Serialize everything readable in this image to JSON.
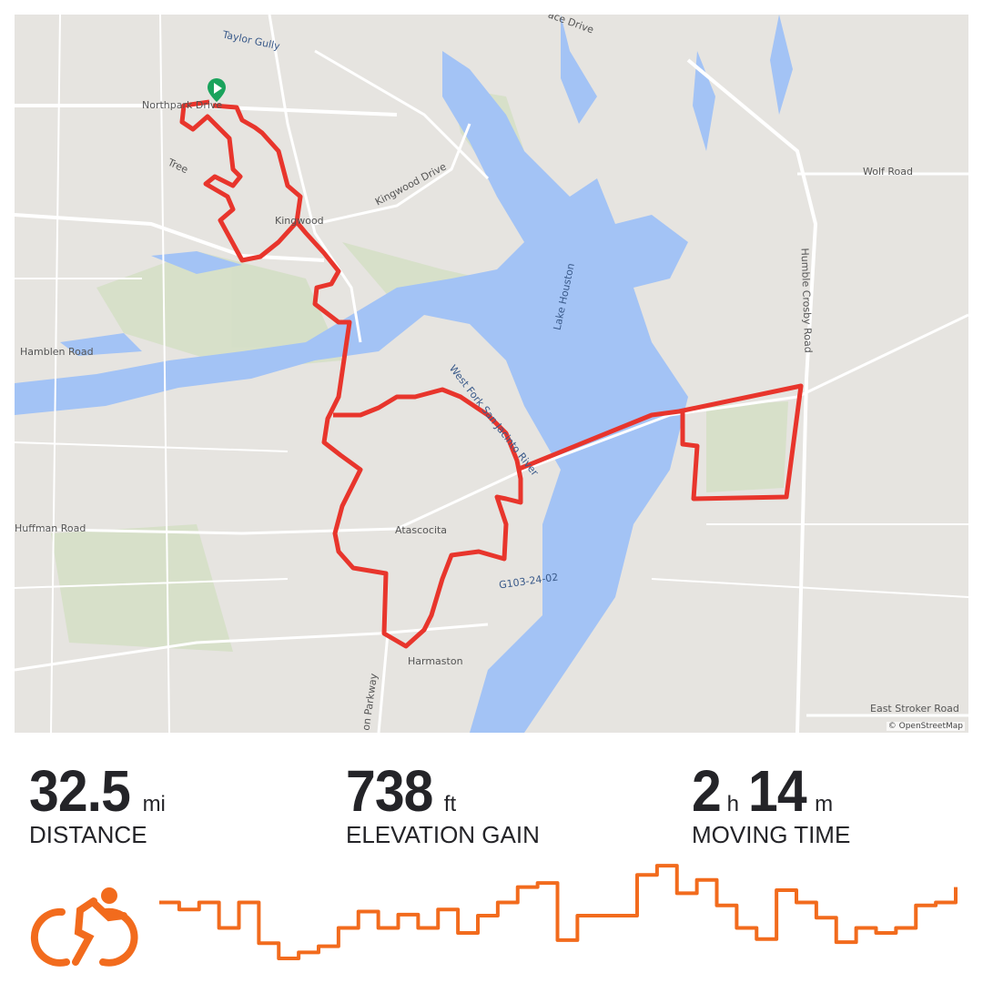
{
  "map": {
    "labels": {
      "taylor_gully": "Taylor Gully",
      "northpark": "Northpark Drive",
      "tree": "Tree",
      "kingwood": "Kingwood",
      "kingwood_drive": "Kingwood Drive",
      "hamblen": "Hamblen Road",
      "west_fork": "West Fork San Jacinto River",
      "lake_houston": "Lake Houston",
      "humble_crosby": "Humble Crosby Road",
      "wolf_road": "Wolf Road",
      "huffman": "Huffman Road",
      "atascocita": "Atascocita",
      "g103": "G103-24-02",
      "harmaston": "Harmaston",
      "parkway": "on Parkway",
      "east_stroker": "East Stroker Road",
      "place_drive": "ace Drive"
    },
    "attribution": "© OpenStreetMap",
    "colors": {
      "route": "#e8352c",
      "water": "#a3c3f5",
      "land": "#e6e4e0",
      "park": "#d3dfc4",
      "start_marker": "#1aa35c"
    }
  },
  "stats": [
    {
      "value": "32.5",
      "unit": "mi",
      "label": "DISTANCE"
    },
    {
      "value": "738",
      "unit": "ft",
      "label": "ELEVATION GAIN"
    },
    {
      "value_h": "2",
      "unit_h": "h",
      "value_m": "14",
      "unit_m": "m",
      "label": "MOVING TIME"
    }
  ],
  "activity": {
    "type_icon": "cycling-icon",
    "color": "#f26b1d"
  },
  "elevation_profile": {
    "type": "line",
    "relative_levels": [
      63,
      56,
      63,
      38,
      63,
      23,
      8,
      14,
      20,
      38,
      54,
      38,
      51,
      38,
      56,
      33,
      50,
      63,
      78,
      82,
      26,
      50,
      50,
      50,
      90,
      99,
      72,
      85,
      60,
      38,
      27,
      75,
      63,
      48,
      24,
      38,
      33,
      38,
      60,
      63,
      78
    ]
  }
}
